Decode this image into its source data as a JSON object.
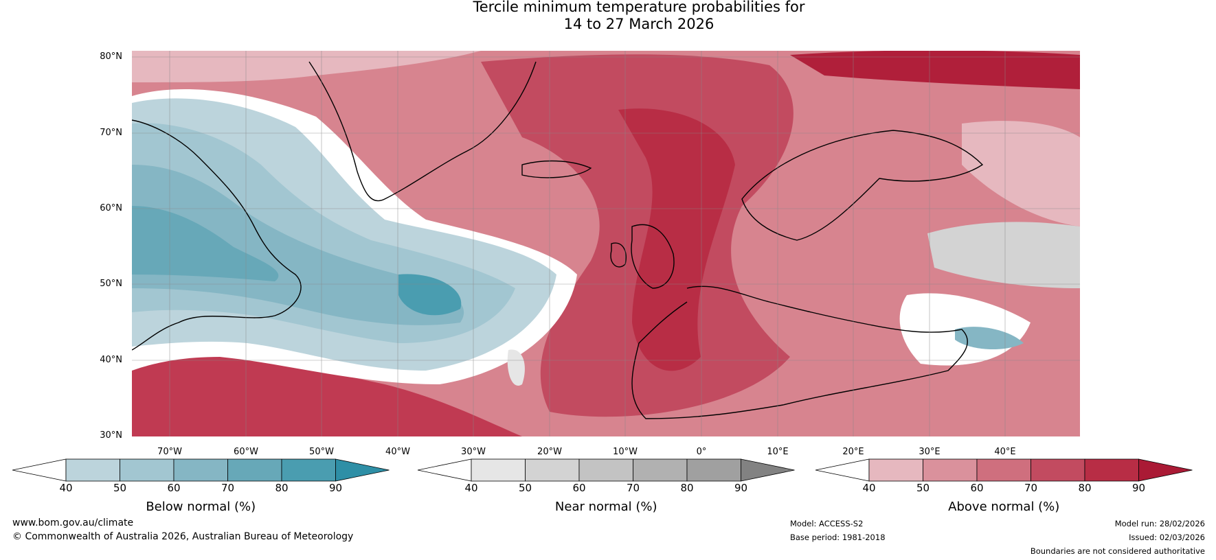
{
  "title": {
    "line1": "Tercile minimum temperature probabilities for",
    "line2": "14 to 27 March 2026"
  },
  "map": {
    "lat_labels": [
      "80°N",
      "70°N",
      "60°N",
      "50°N",
      "40°N",
      "30°N"
    ],
    "lon_labels": [
      "70°W",
      "60°W",
      "50°W",
      "40°W",
      "30°W",
      "20°W",
      "10°W",
      "0°",
      "10°E",
      "20°E",
      "30°E",
      "40°E"
    ],
    "colors": {
      "ocean_bg": "#d7848f",
      "above_strong": "#b8263f",
      "below": "#4a9fb3",
      "near": "#d0d0d0",
      "land_line": "#000000",
      "border_line": "#888888"
    }
  },
  "colorbars": [
    {
      "label": "Below normal (%)",
      "ticks": [
        "40",
        "50",
        "60",
        "70",
        "80",
        "90"
      ],
      "colors": [
        "#ffffff",
        "#bcd4dc",
        "#a2c6d1",
        "#85b6c4",
        "#67a8b8",
        "#4a9db0",
        "#2e8fa6"
      ]
    },
    {
      "label": "Near normal (%)",
      "ticks": [
        "40",
        "50",
        "60",
        "70",
        "80",
        "90"
      ],
      "colors": [
        "#ffffff",
        "#e6e6e6",
        "#d3d3d3",
        "#c3c3c3",
        "#b1b1b1",
        "#a0a0a0",
        "#828282"
      ]
    },
    {
      "label": "Above normal (%)",
      "ticks": [
        "40",
        "50",
        "60",
        "70",
        "80",
        "90"
      ],
      "colors": [
        "#ffffff",
        "#e6b8bf",
        "#da919c",
        "#cf6f7e",
        "#c24b60",
        "#b82d45",
        "#aa1a35"
      ]
    }
  ],
  "footer": {
    "website": "www.bom.gov.au/climate",
    "copyright": "© Commonwealth of Australia 2026, Australian Bureau of Meteorology",
    "model": "Model: ACCESS-S2",
    "base_period": "Base period: 1981-2018",
    "model_run": "Model run: 28/02/2026",
    "issued": "Issued: 02/03/2026",
    "disclaimer": "Boundaries are not considered authoritative"
  }
}
